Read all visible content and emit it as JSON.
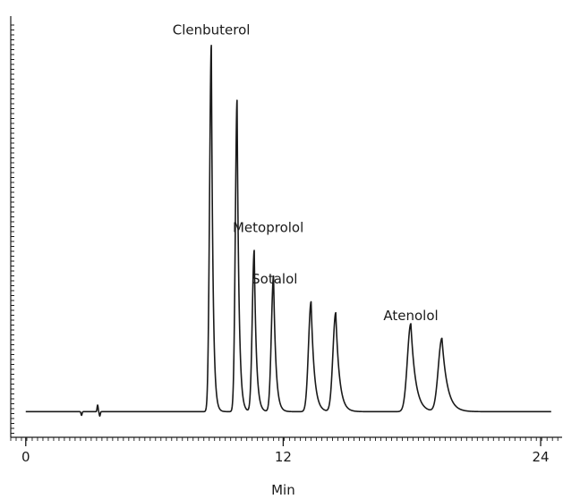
{
  "chart_data": {
    "type": "line",
    "title": "",
    "xlabel": "Min",
    "ylabel": "",
    "xlim": [
      -0.7,
      25
    ],
    "ylim": [
      -0.05,
      1.1
    ],
    "x_ticks": [
      {
        "value": 0,
        "label": "0"
      },
      {
        "value": 12,
        "label": "12"
      },
      {
        "value": 24,
        "label": "24"
      }
    ],
    "grid": false,
    "legend": "none",
    "baseline": 0.02,
    "line_color": "#1a1a1a",
    "series": [
      {
        "peaks": [
          {
            "x": 8.65,
            "height": 1.0,
            "sigma_left": 0.08,
            "tau": 0.08
          },
          {
            "x": 9.85,
            "height": 0.85,
            "sigma_left": 0.08,
            "tau": 0.09
          },
          {
            "x": 10.65,
            "height": 0.44,
            "sigma_left": 0.09,
            "tau": 0.1
          },
          {
            "x": 11.55,
            "height": 0.37,
            "sigma_left": 0.1,
            "tau": 0.11
          },
          {
            "x": 13.3,
            "height": 0.3,
            "sigma_left": 0.12,
            "tau": 0.15
          },
          {
            "x": 14.45,
            "height": 0.27,
            "sigma_left": 0.13,
            "tau": 0.17
          },
          {
            "x": 17.95,
            "height": 0.24,
            "sigma_left": 0.16,
            "tau": 0.22
          },
          {
            "x": 19.4,
            "height": 0.2,
            "sigma_left": 0.17,
            "tau": 0.25
          }
        ],
        "disturbance": [
          {
            "x": 2.6,
            "y": -0.01
          },
          {
            "x": 3.25,
            "y": 0.0
          },
          {
            "x": 3.35,
            "y": 0.018
          },
          {
            "x": 3.45,
            "y": -0.012
          }
        ]
      }
    ],
    "annotations": [
      {
        "text": "Clenbuterol",
        "x": 8.65,
        "y": 1.05
      },
      {
        "text": "Metoprolol",
        "x": 11.3,
        "y": 0.51
      },
      {
        "text": "Sotalol",
        "x": 11.6,
        "y": 0.37
      },
      {
        "text": "Atenolol",
        "x": 17.95,
        "y": 0.27
      }
    ]
  }
}
